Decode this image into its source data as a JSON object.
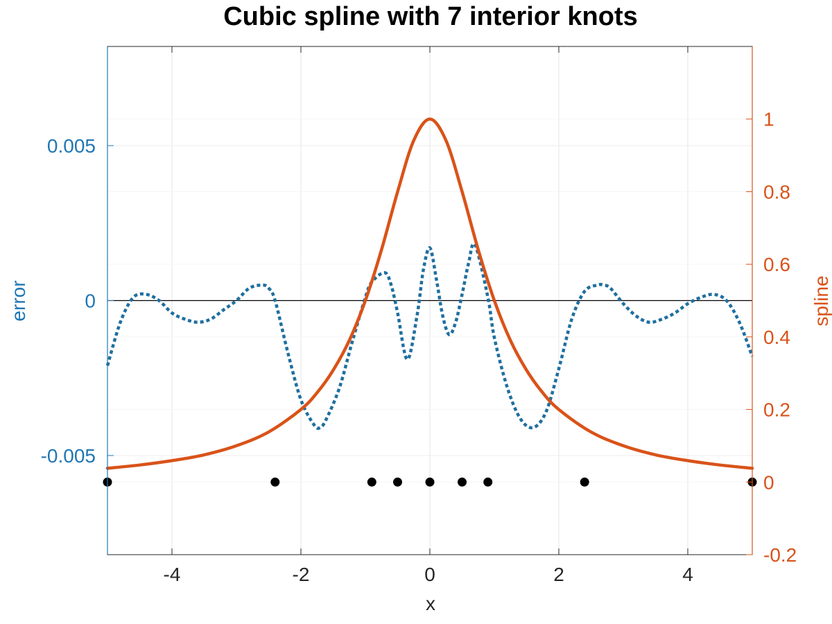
{
  "chart_data": {
    "type": "line",
    "title": "Cubic spline with 7 interior knots",
    "xlabel": "x",
    "ylabel_left": "error",
    "ylabel_right": "spline",
    "xlim": [
      -5,
      5
    ],
    "ylim_left": [
      -0.0082,
      0.0082
    ],
    "ylim_right": [
      -0.2,
      1.2
    ],
    "xticks": [
      -4,
      -2,
      0,
      2,
      4
    ],
    "xtick_labels": [
      "-4",
      "-2",
      "0",
      "2",
      "4"
    ],
    "yticks_left": [
      -0.005,
      0,
      0.005
    ],
    "ytick_labels_left": [
      "-0.005",
      "0",
      "0.005"
    ],
    "yticks_right": [
      -0.2,
      0,
      0.2,
      0.4,
      0.6,
      0.8,
      1
    ],
    "ytick_labels_right": [
      "-0.2",
      "0",
      "0.2",
      "0.4",
      "0.6",
      "0.8",
      "1"
    ],
    "grid": true,
    "colors": {
      "error": "#1f6f9f",
      "spline": "#d95319",
      "left_axis": "#1f77b4",
      "right_axis": "#d95319",
      "knots": "#000000",
      "zero_line": "#000000"
    },
    "series": [
      {
        "axis": "left",
        "style": "dotted",
        "x": [
          -5,
          -4.8,
          -4.6,
          -4.4,
          -4.2,
          -4.0,
          -3.8,
          -3.6,
          -3.4,
          -3.2,
          -3.0,
          -2.8,
          -2.6,
          -2.5,
          -2.4,
          -2.2,
          -2.0,
          -1.8,
          -1.7,
          -1.6,
          -1.4,
          -1.2,
          -1.0,
          -0.9,
          -0.7,
          -0.6,
          -0.5,
          -0.35,
          -0.2,
          -0.1,
          0,
          0.1,
          0.2,
          0.3,
          0.4,
          0.5,
          0.6,
          0.7,
          0.9,
          1.0,
          1.2,
          1.4,
          1.6,
          1.8,
          2.0,
          2.2,
          2.4,
          2.6,
          2.7,
          2.8,
          3.0,
          3.2,
          3.4,
          3.6,
          3.8,
          4.0,
          4.2,
          4.4,
          4.6,
          4.8,
          5
        ],
        "y": [
          -0.0021,
          -0.0007,
          0.0001,
          0.0002,
          0.0,
          -0.0004,
          -0.0006,
          -0.0007,
          -0.0006,
          -0.0003,
          0.0,
          0.0004,
          0.0005,
          0.0004,
          0.0,
          -0.0017,
          -0.0032,
          -0.004,
          -0.0041,
          -0.0038,
          -0.0028,
          -0.0013,
          0.0001,
          0.0006,
          0.0009,
          0.0005,
          -0.0004,
          -0.0019,
          -0.0005,
          0.001,
          0.0017,
          0.0007,
          -0.0005,
          -0.0011,
          -0.0007,
          0.0002,
          0.0012,
          0.0018,
          0.0001,
          -0.0012,
          -0.0028,
          -0.0038,
          -0.0041,
          -0.0036,
          -0.0022,
          -0.0006,
          0.0003,
          0.0005,
          0.0005,
          0.0004,
          -0.0001,
          -0.0005,
          -0.0007,
          -0.0006,
          -0.0004,
          -0.0001,
          0.0001,
          0.0002,
          0.0,
          -0.0007,
          -0.0018
        ]
      },
      {
        "axis": "right",
        "style": "solid",
        "x": [
          -5,
          -4.5,
          -4,
          -3.5,
          -3,
          -2.5,
          -2,
          -1.75,
          -1.5,
          -1.25,
          -1,
          -0.75,
          -0.5,
          -0.25,
          0,
          0.25,
          0.5,
          0.75,
          1,
          1.25,
          1.5,
          1.75,
          2,
          2.5,
          3,
          3.5,
          4,
          4.5,
          5
        ],
        "y": [
          0.038,
          0.047,
          0.059,
          0.075,
          0.1,
          0.138,
          0.2,
          0.246,
          0.308,
          0.39,
          0.5,
          0.64,
          0.8,
          0.941,
          1.0,
          0.941,
          0.8,
          0.64,
          0.5,
          0.39,
          0.308,
          0.246,
          0.2,
          0.138,
          0.1,
          0.075,
          0.059,
          0.047,
          0.038
        ]
      }
    ],
    "knots": {
      "axis": "right",
      "x": [
        -5,
        -2.4,
        -0.9,
        -0.5,
        0,
        0.5,
        0.9,
        2.4,
        5
      ],
      "y": [
        0,
        0,
        0,
        0,
        0,
        0,
        0,
        0,
        0
      ]
    }
  }
}
